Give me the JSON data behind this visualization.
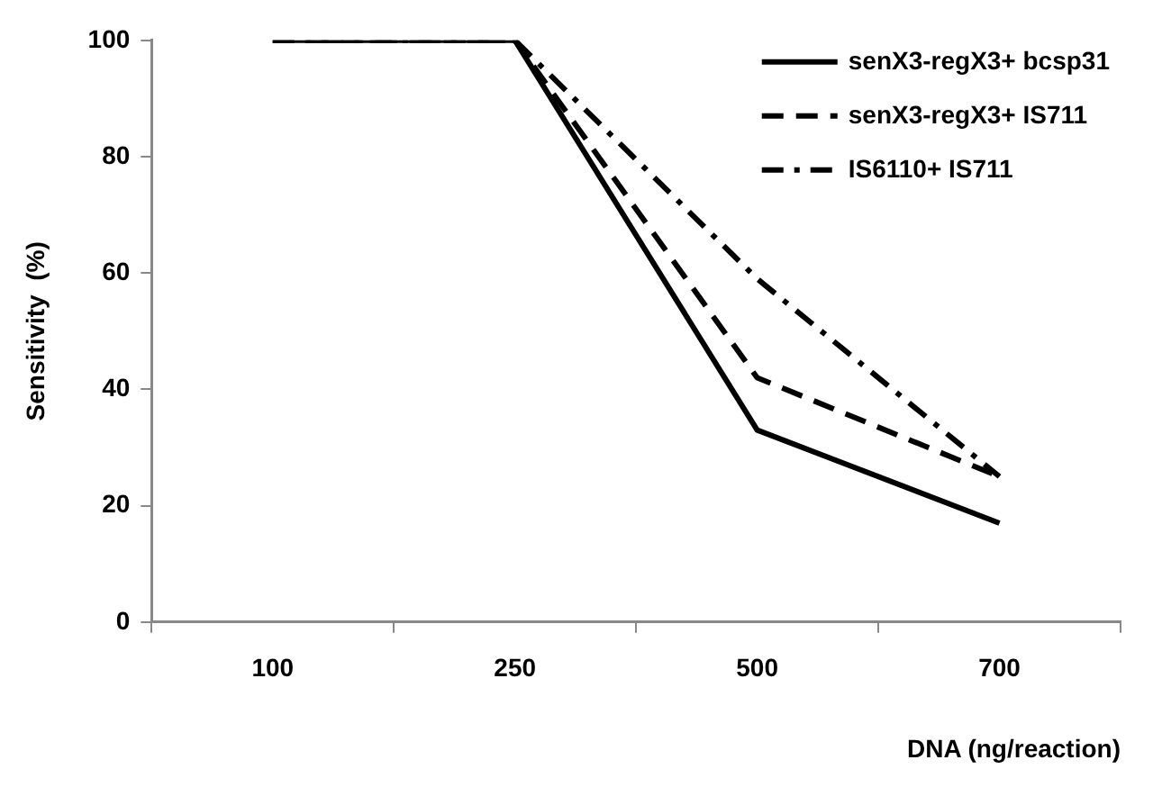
{
  "chart_data": {
    "type": "line",
    "xlabel": "DNA (ng/reaction)",
    "ylabel": "Sensitivity  (%)",
    "categories": [
      "100",
      "250",
      "500",
      "700"
    ],
    "series": [
      {
        "name": "senX3-regX3+ bcsp31",
        "color": "#000000",
        "line_style": "solid",
        "values": [
          100,
          100,
          33,
          17
        ]
      },
      {
        "name": "senX3-regX3+ IS711",
        "color": "#000000",
        "line_style": "dashed",
        "values": [
          100,
          100,
          42,
          25
        ]
      },
      {
        "name": "IS6110+ IS711",
        "color": "#000000",
        "line_style": "dashdot",
        "values": [
          100,
          100,
          59,
          25
        ]
      }
    ],
    "ylim": [
      0,
      100
    ],
    "yticks": [
      0,
      20,
      40,
      60,
      80,
      100
    ],
    "grid": false,
    "legend": "top right",
    "marker": "none"
  }
}
